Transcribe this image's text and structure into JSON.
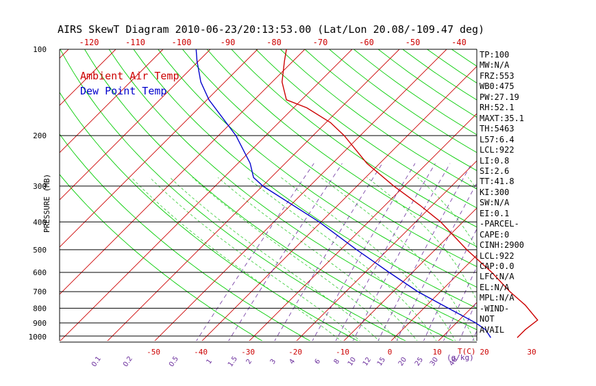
{
  "title": "AIRS SkewT Diagram 2010-06-23/20:13:53.00 (Lat/Lon 20.08/-109.47 deg)",
  "chart_data": {
    "type": "line",
    "title": "AIRS SkewT Diagram 2010-06-23/20:13:53.00 (Lat/Lon 20.08/-109.47 deg)",
    "ylabel": "PRESSURE (MB)",
    "xlabel": "T(C)",
    "y_scale": "log",
    "ylim": [
      1000,
      100
    ],
    "pressure_ticks": [
      100,
      200,
      300,
      400,
      500,
      600,
      700,
      800,
      900,
      1000
    ],
    "pressure_lines": [
      1050,
      1000,
      900,
      800,
      700,
      600,
      500,
      400,
      300,
      200
    ],
    "top_temp_ticks": [
      "-120",
      "-110",
      "-100",
      "-90",
      "-80",
      "-70",
      "-60",
      "-50",
      "-40"
    ],
    "bottom_temp_ticks": [
      "-50",
      "-40",
      "-30",
      "-20",
      "-10",
      "0",
      "10",
      "20",
      "30"
    ],
    "temp_unit_label": "T(C)",
    "mixing_ratio_ticks": [
      "0.1",
      "0.2",
      "0.5",
      "1",
      "1.5",
      "2",
      "3",
      "4",
      "6",
      "8",
      "10",
      "12",
      "15",
      "20",
      "25",
      "30",
      "40"
    ],
    "mixing_ratio_unit_label": "(g/kg)",
    "legend": [
      {
        "name": "Ambient Air Temp",
        "color": "#cc0000"
      },
      {
        "name": "Dew Point Temp",
        "color": "#0000cc"
      }
    ],
    "series": [
      {
        "name": "Ambient Air Temp",
        "color": "#cc0000",
        "points": [
          {
            "p": 1013,
            "t": 26.0
          },
          {
            "p": 950,
            "t": 26.0
          },
          {
            "p": 880,
            "t": 26.6
          },
          {
            "p": 780,
            "t": 20.8
          },
          {
            "p": 700,
            "t": 14.7
          },
          {
            "p": 600,
            "t": 6.8
          },
          {
            "p": 500,
            "t": -3.3
          },
          {
            "p": 400,
            "t": -14.7
          },
          {
            "p": 350,
            "t": -22.6
          },
          {
            "p": 300,
            "t": -32.2
          },
          {
            "p": 250,
            "t": -42.7
          },
          {
            "p": 200,
            "t": -53.4
          },
          {
            "p": 180,
            "t": -59.1
          },
          {
            "p": 160,
            "t": -67.2
          },
          {
            "p": 150,
            "t": -73.2
          },
          {
            "p": 130,
            "t": -77.9
          },
          {
            "p": 110,
            "t": -81.8
          },
          {
            "p": 100,
            "t": -83.9
          }
        ]
      },
      {
        "name": "Dew Point Temp",
        "color": "#0000cc",
        "points": [
          {
            "p": 1013,
            "t": 20.4
          },
          {
            "p": 950,
            "t": 17.6
          },
          {
            "p": 900,
            "t": 14.1
          },
          {
            "p": 800,
            "t": 5.2
          },
          {
            "p": 700,
            "t": -4.8
          },
          {
            "p": 600,
            "t": -14.9
          },
          {
            "p": 500,
            "t": -26.6
          },
          {
            "p": 400,
            "t": -40.4
          },
          {
            "p": 300,
            "t": -59.9
          },
          {
            "p": 280,
            "t": -63.7
          },
          {
            "p": 250,
            "t": -67.4
          },
          {
            "p": 200,
            "t": -76.3
          },
          {
            "p": 150,
            "t": -89.6
          },
          {
            "p": 130,
            "t": -95.1
          },
          {
            "p": 110,
            "t": -100.3
          },
          {
            "p": 100,
            "t": -103.0
          }
        ]
      }
    ]
  },
  "indices": [
    "TP:100",
    "MW:N/A",
    "FRZ:553",
    "WB0:475",
    "PW:27.19",
    "RH:52.1",
    "MAXT:35.1",
    "TH:5463",
    "L57:6.4",
    "LCL:922",
    "LI:0.8",
    "SI:2.6",
    "TT:41.8",
    "KI:300",
    "SW:N/A",
    "EI:0.1",
    "-PARCEL-",
    "CAPE:0",
    "CINH:2900",
    "LCL:922",
    "CAP:0.0",
    "LFC:N/A",
    "EL:N/A",
    "MPL:N/A",
    "-WIND-",
    "NOT",
    "AVAIL"
  ],
  "colors": {
    "isotherm": "#cc0000",
    "dry_adiabat": "#00cc00",
    "moist_adiabat": "#33cc33",
    "mixing_ratio": "#6a2d9c",
    "temperature": "#cc0000",
    "dewpoint": "#0000cc",
    "isobar": "#000000"
  }
}
